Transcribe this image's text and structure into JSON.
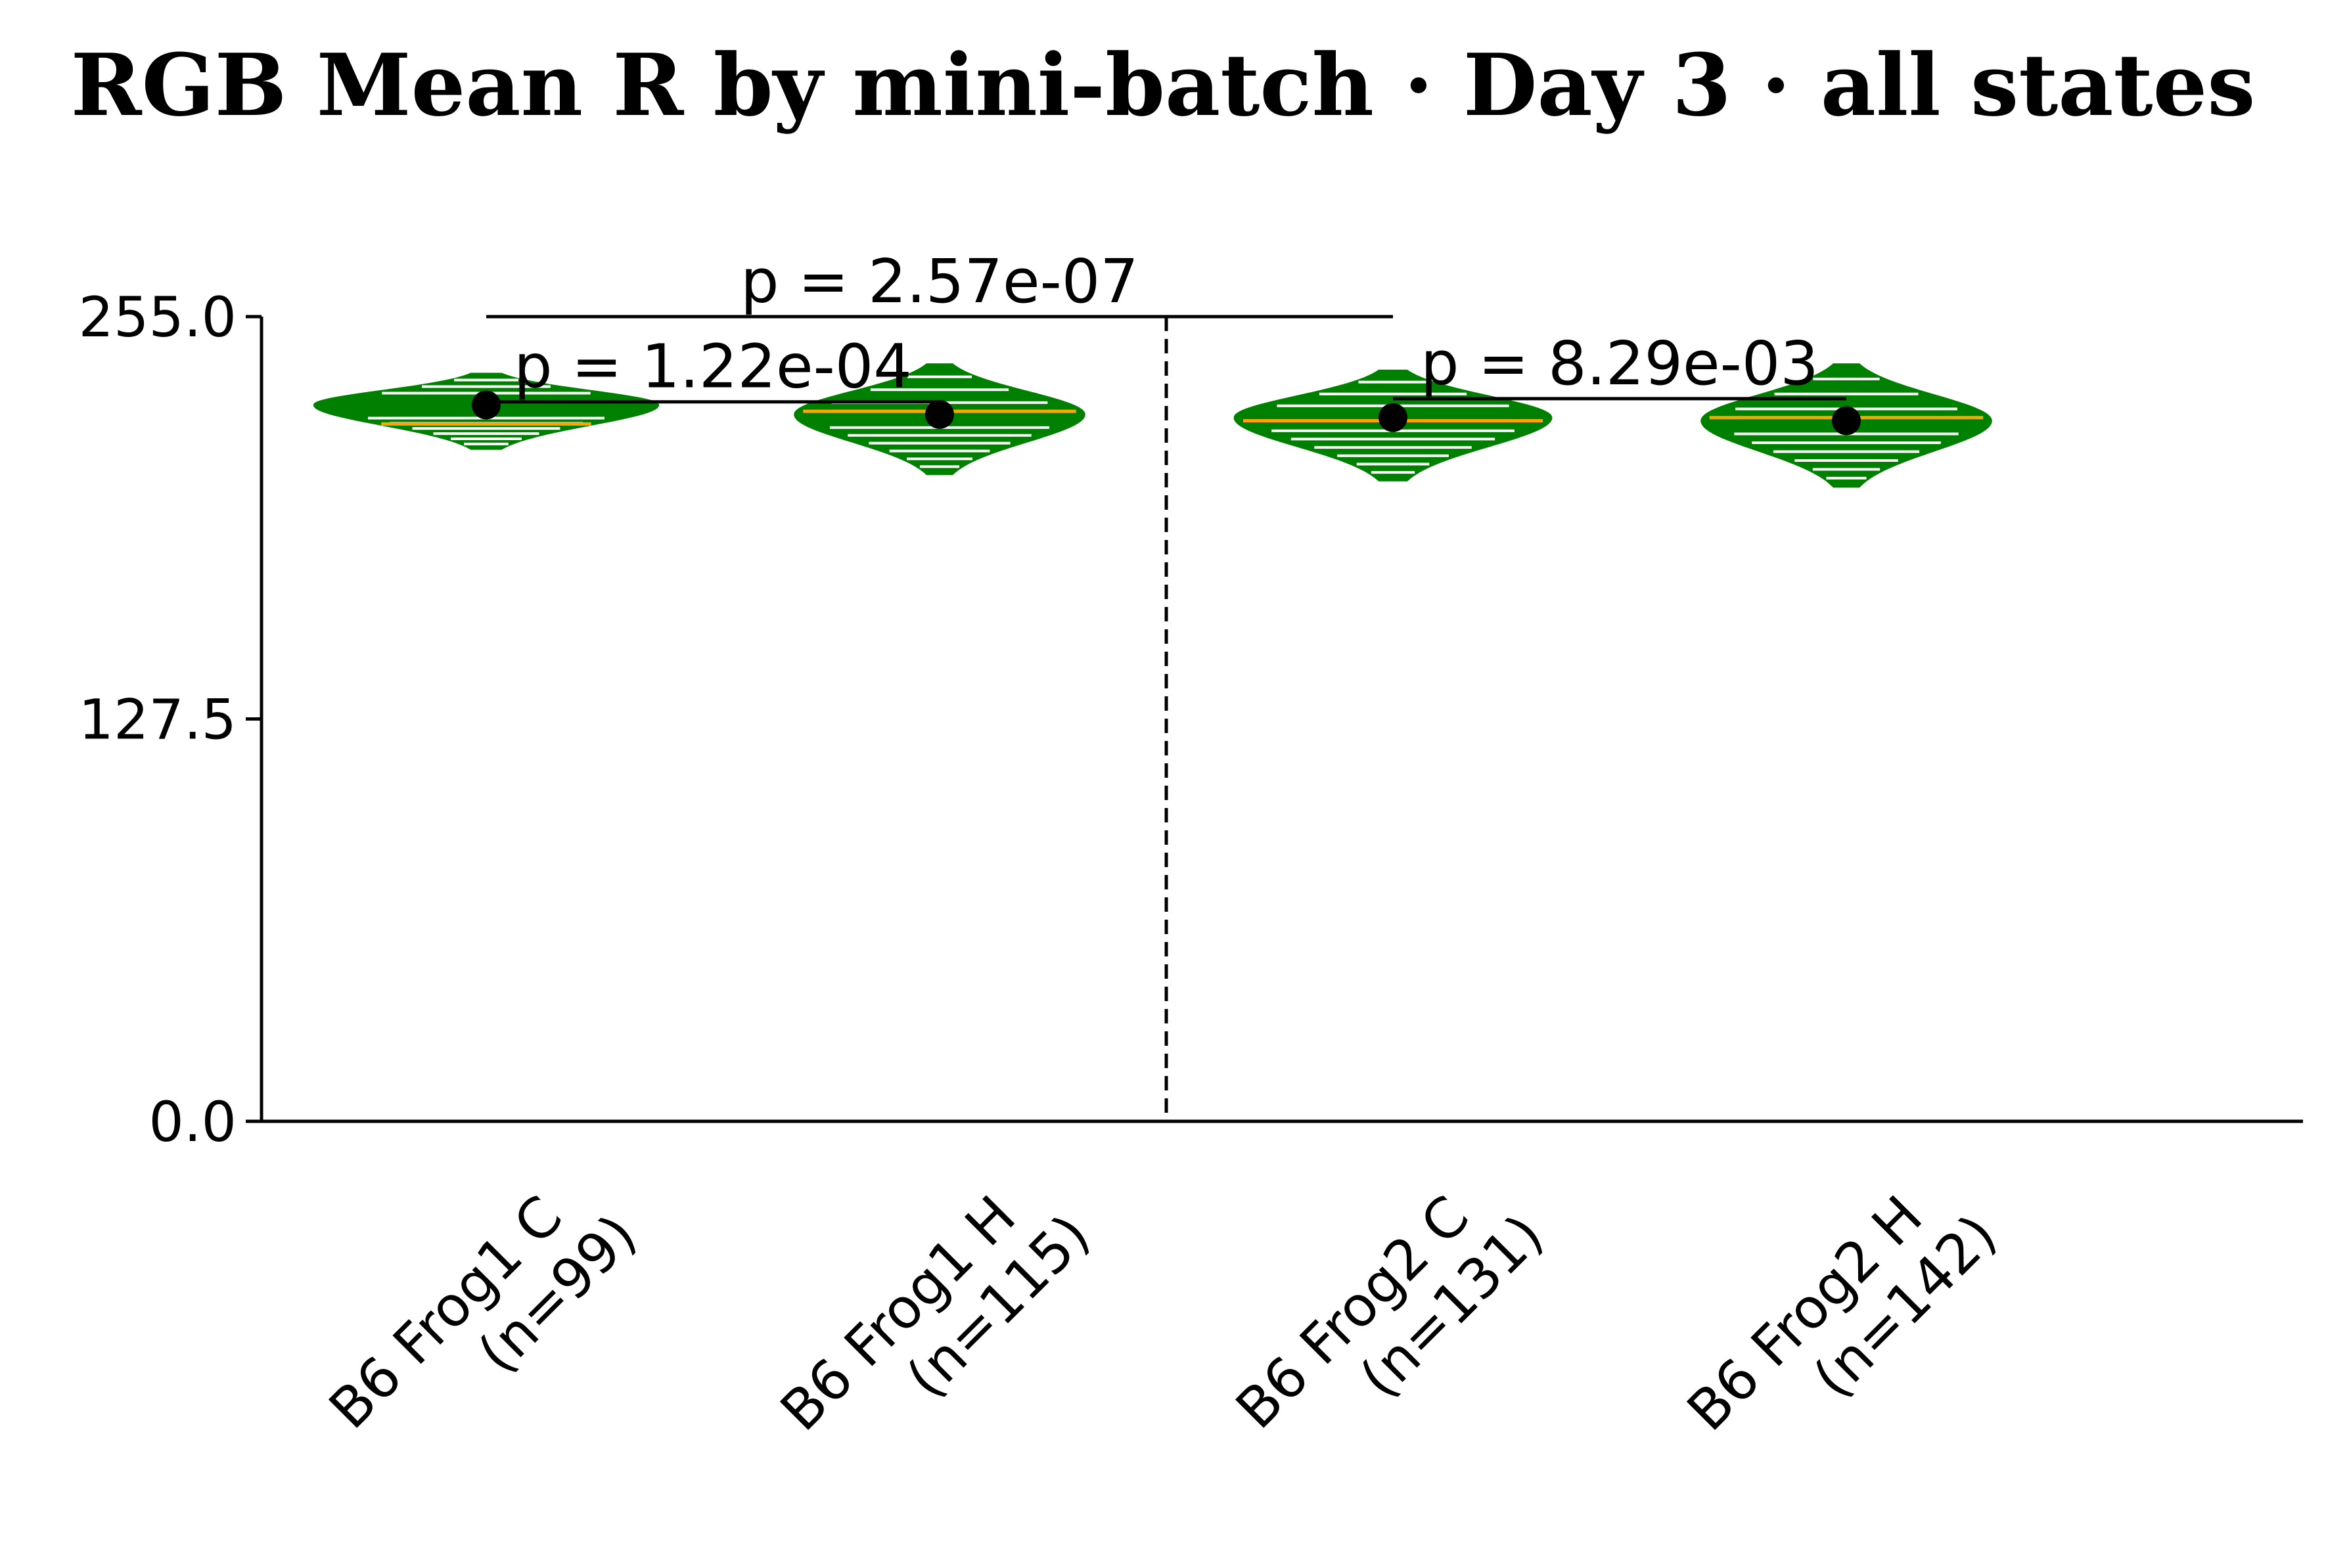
{
  "chart_data": {
    "type": "violin",
    "title": "RGB Mean R by mini-batch · Day 3 · all states",
    "xlabel": "",
    "ylabel": "",
    "ylim": [
      0,
      255
    ],
    "yticks": [
      "0.0",
      "127.5",
      "255.0"
    ],
    "grid": false,
    "categories": [
      {
        "line1": "B6 Frog1 C",
        "line2": "(n=99)"
      },
      {
        "line1": "B6 Frog1 H",
        "line2": "(n=115)"
      },
      {
        "line1": "B6 Frog2 C",
        "line2": "(n=131)"
      },
      {
        "line1": "B6 Frog2 H",
        "line2": "(n=142)"
      }
    ],
    "groups": [
      {
        "mean": 227,
        "median": 221,
        "min": 213,
        "max": 237,
        "half_width": 0.38,
        "n": 99
      },
      {
        "mean": 224,
        "median": 225,
        "min": 205,
        "max": 240,
        "half_width": 0.32,
        "n": 115
      },
      {
        "mean": 223,
        "median": 222,
        "min": 203,
        "max": 238,
        "half_width": 0.35,
        "n": 131
      },
      {
        "mean": 222,
        "median": 223,
        "min": 201,
        "max": 240,
        "half_width": 0.32,
        "n": 142
      }
    ],
    "separator_after_index": 1,
    "comparisons": [
      {
        "from": 0,
        "to": 1,
        "label": "p = 1.22e-04",
        "y": 228
      },
      {
        "from": 0,
        "to": 2,
        "label": "p = 2.57e-07",
        "y": 255
      },
      {
        "from": 2,
        "to": 3,
        "label": "p = 8.29e-03",
        "y": 229
      }
    ],
    "colors": {
      "violin_fill": "#008000",
      "stripe": "#ffffff",
      "median_line": "#ffa500",
      "mean_marker": "#000000",
      "whisker_tip": "#c8c8c8",
      "axis": "#000000"
    }
  }
}
